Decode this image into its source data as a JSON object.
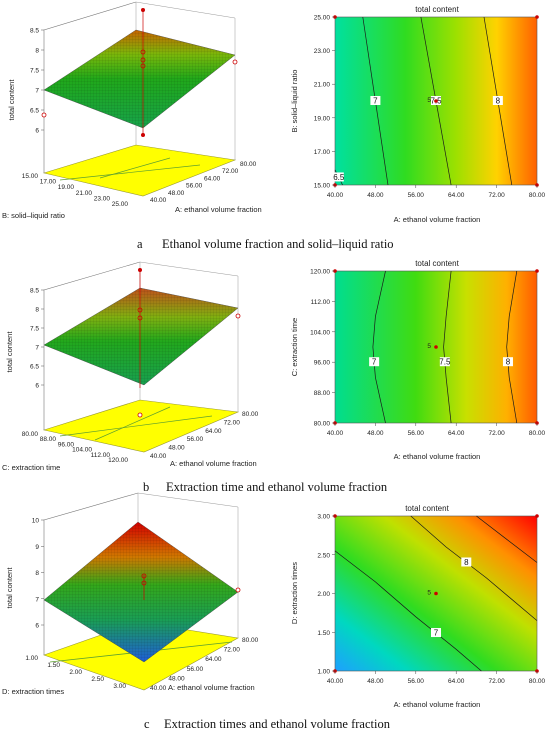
{
  "chart_data": [
    {
      "type": "surface3d",
      "zlabel": "total content",
      "xlabel": "A: ethanol volume fraction",
      "ylabel": "B: solid–liquid ratio",
      "zticks": [
        "6",
        "6.5",
        "7",
        "7.5",
        "8",
        "8.5"
      ],
      "xticks": [
        "40.00",
        "48.00",
        "56.00",
        "64.00",
        "72.00",
        "80.00"
      ],
      "yticks": [
        "15.00",
        "17.00",
        "19.00",
        "21.00",
        "23.00",
        "25.00"
      ],
      "corners": {
        "A40_B15": 6.45,
        "A80_B15": 7.9,
        "A40_B25": 7.0,
        "A80_B25": 8.4
      }
    },
    {
      "type": "contour",
      "title": "total content",
      "xlabel": "A: ethanol volume fraction",
      "ylabel": "B: solid–liquid ratio",
      "xlim": [
        40,
        80
      ],
      "ylim": [
        15,
        25
      ],
      "xticks": [
        "40.00",
        "48.00",
        "56.00",
        "64.00",
        "72.00",
        "80.00"
      ],
      "yticks": [
        "15.00",
        "17.00",
        "19.00",
        "21.00",
        "23.00",
        "25.00"
      ],
      "contours": [
        {
          "level": "6.5",
          "points": [
            [
              40,
              15.9
            ],
            [
              41.5,
              15
            ]
          ]
        },
        {
          "level": "7",
          "points": [
            [
              45.5,
              25
            ],
            [
              50.5,
              15
            ]
          ]
        },
        {
          "level": "7.5",
          "points": [
            [
              57,
              25
            ],
            [
              63,
              15
            ]
          ]
        },
        {
          "level": "8",
          "points": [
            [
              69.5,
              25
            ],
            [
              75,
              15
            ]
          ]
        }
      ],
      "design_point": {
        "x": 60,
        "y": 20,
        "label": "5"
      }
    },
    {
      "type": "surface3d",
      "zlabel": "total content",
      "xlabel": "A: ethanol volume fraction",
      "ylabel": "C: extraction time",
      "zticks": [
        "6",
        "6.5",
        "7",
        "7.5",
        "8",
        "8.5"
      ],
      "xticks": [
        "40.00",
        "48.00",
        "56.00",
        "64.00",
        "72.00",
        "80.00"
      ],
      "yticks": [
        "80.00",
        "88.00",
        "96.00",
        "104.00",
        "112.00",
        "120.00"
      ],
      "corners": {
        "A40_C80": 6.7,
        "A80_C80": 8.1,
        "A40_C120": 6.9,
        "A80_C120": 8.3
      }
    },
    {
      "type": "contour",
      "title": "total content",
      "xlabel": "A: ethanol volume fraction",
      "ylabel": "C: extraction time",
      "xlim": [
        40,
        80
      ],
      "ylim": [
        80,
        120
      ],
      "xticks": [
        "40.00",
        "48.00",
        "56.00",
        "64.00",
        "72.00",
        "80.00"
      ],
      "yticks": [
        "80.00",
        "88.00",
        "96.00",
        "104.00",
        "112.00",
        "120.00"
      ],
      "contours": [
        {
          "level": "7",
          "points": [
            [
              50,
              120
            ],
            [
              48,
              108
            ],
            [
              47.5,
              100
            ],
            [
              48,
              92
            ],
            [
              50,
              80
            ]
          ]
        },
        {
          "level": "7.5",
          "points": [
            [
              63,
              120
            ],
            [
              62,
              108
            ],
            [
              61.5,
              100
            ],
            [
              62,
              92
            ],
            [
              63,
              80
            ]
          ]
        },
        {
          "level": "8",
          "points": [
            [
              76,
              120
            ],
            [
              74.5,
              108
            ],
            [
              74,
              100
            ],
            [
              74.5,
              92
            ],
            [
              76,
              80
            ]
          ]
        }
      ],
      "design_point": {
        "x": 60,
        "y": 100,
        "label": "5"
      }
    },
    {
      "type": "surface3d",
      "zlabel": "total content",
      "xlabel": "A: ethanol volume fraction",
      "ylabel": "D: extraction times",
      "zticks": [
        "6",
        "7",
        "8",
        "9",
        "10"
      ],
      "xticks": [
        "40.00",
        "48.00",
        "56.00",
        "64.00",
        "72.00",
        "80.00"
      ],
      "yticks": [
        "1.00",
        "1.50",
        "2.00",
        "2.50",
        "3.00"
      ],
      "corners": {
        "A40_D1": 5.6,
        "A80_D1": 7.4,
        "A40_D3": 7.2,
        "A80_D3": 9.5
      }
    },
    {
      "type": "contour",
      "title": "total content",
      "xlabel": "A: ethanol volume fraction",
      "ylabel": "D: extraction times",
      "xlim": [
        40,
        80
      ],
      "ylim": [
        1,
        3
      ],
      "xticks": [
        "40.00",
        "48.00",
        "56.00",
        "64.00",
        "72.00",
        "80.00"
      ],
      "yticks": [
        "1.00",
        "1.50",
        "2.00",
        "2.50",
        "3.00"
      ],
      "contours": [
        {
          "level": "7",
          "points": [
            [
              40,
              2.55
            ],
            [
              48,
              2.15
            ],
            [
              56,
              1.7
            ],
            [
              64,
              1.28
            ],
            [
              69,
              1.0
            ]
          ]
        },
        {
          "level": "8",
          "points": [
            [
              55,
              3.0
            ],
            [
              62,
              2.6
            ],
            [
              70,
              2.2
            ],
            [
              80,
              1.65
            ]
          ]
        },
        {
          "level": "",
          "points": [
            [
              68,
              3.0
            ],
            [
              74,
              2.7
            ],
            [
              80,
              2.4
            ]
          ]
        }
      ],
      "design_point": {
        "x": 60,
        "y": 2.0,
        "label": "5"
      }
    }
  ],
  "captions": [
    {
      "letter": "a",
      "text": "Ethanol volume fraction and solid–liquid ratio"
    },
    {
      "letter": "b",
      "text": "Extraction time and ethanol volume fraction"
    },
    {
      "letter": "c",
      "text": "Extraction times and ethanol volume fraction"
    }
  ]
}
